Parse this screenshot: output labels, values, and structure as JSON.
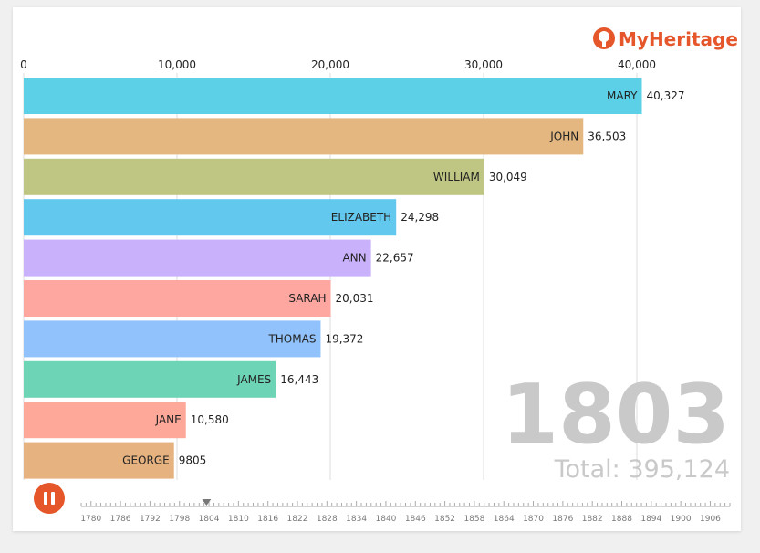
{
  "brand": {
    "name": "MyHeritage",
    "logo_icon": "myheritage-logo-icon",
    "color": "#e5562a"
  },
  "chart_data": {
    "type": "bar",
    "orientation": "horizontal",
    "title": "",
    "xlabel": "",
    "ylabel": "",
    "xlim": [
      0,
      42000
    ],
    "x_ticks": [
      0,
      10000,
      20000,
      30000,
      40000
    ],
    "x_tick_labels": [
      "0",
      "10,000",
      "20,000",
      "30,000",
      "40,000"
    ],
    "grid": true,
    "categories": [
      "MARY",
      "JOHN",
      "WILLIAM",
      "ELIZABETH",
      "ANN",
      "SARAH",
      "THOMAS",
      "JAMES",
      "JANE",
      "GEORGE"
    ],
    "values": [
      40327,
      36503,
      30049,
      24298,
      22657,
      20031,
      19372,
      16443,
      10580,
      9805
    ],
    "value_labels": [
      "40,327",
      "36,503",
      "30,049",
      "24,298",
      "22,657",
      "20,031",
      "19,372",
      "16,443",
      "10,580",
      "9805"
    ],
    "colors": [
      "#5bd0e6",
      "#e4b680",
      "#bfc683",
      "#63c8ee",
      "#c9b1fb",
      "#fea7a1",
      "#91c2fb",
      "#6dd4b6",
      "#fea899",
      "#e6b27f"
    ]
  },
  "year": "1803",
  "total_label": "Total: 395,124",
  "timeline": {
    "labels": [
      "1780",
      "1786",
      "1792",
      "1798",
      "1804",
      "1810",
      "1816",
      "1822",
      "1828",
      "1834",
      "1840",
      "1846",
      "1852",
      "1858",
      "1864",
      "1870",
      "1876",
      "1882",
      "1888",
      "1894",
      "1900",
      "1906"
    ],
    "start": 1778,
    "end": 1910,
    "current": 1803.5,
    "play_state": "pause"
  }
}
